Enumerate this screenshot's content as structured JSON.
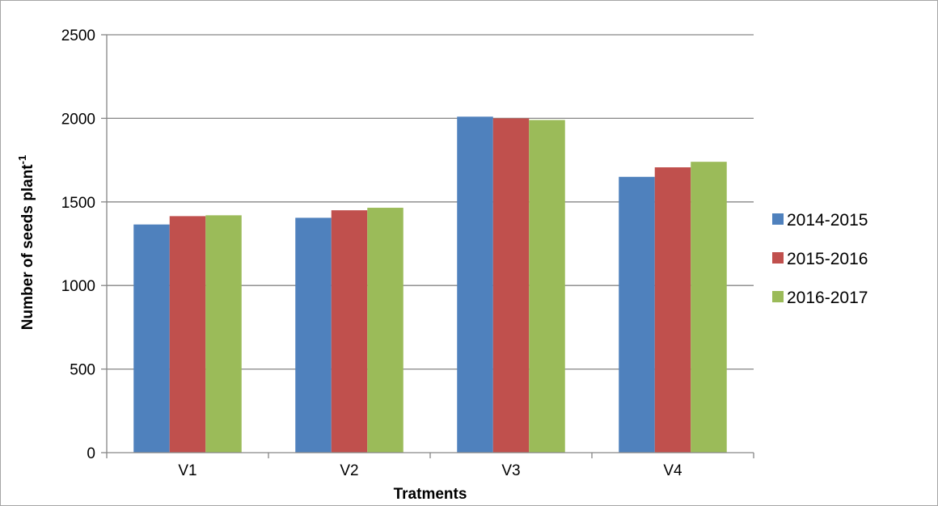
{
  "chart_data": {
    "type": "bar",
    "categories": [
      "V1",
      "V2",
      "V3",
      "V4"
    ],
    "series": [
      {
        "name": "2014-2015",
        "color": "#4f81bd",
        "values": [
          1365,
          1405,
          2010,
          1650
        ]
      },
      {
        "name": "2015-2016",
        "color": "#c0504d",
        "values": [
          1415,
          1450,
          2000,
          1707
        ]
      },
      {
        "name": "2016-2017",
        "color": "#9bbb59",
        "values": [
          1420,
          1465,
          1990,
          1740
        ]
      }
    ],
    "xlabel": "Tratments",
    "ylabel": "Number of seeds plant",
    "ylabel_superscript": "-1",
    "ylim": [
      0,
      2500
    ],
    "yticks": [
      0,
      500,
      1000,
      1500,
      2000,
      2500
    ],
    "grid": true,
    "legend_position": "right"
  }
}
